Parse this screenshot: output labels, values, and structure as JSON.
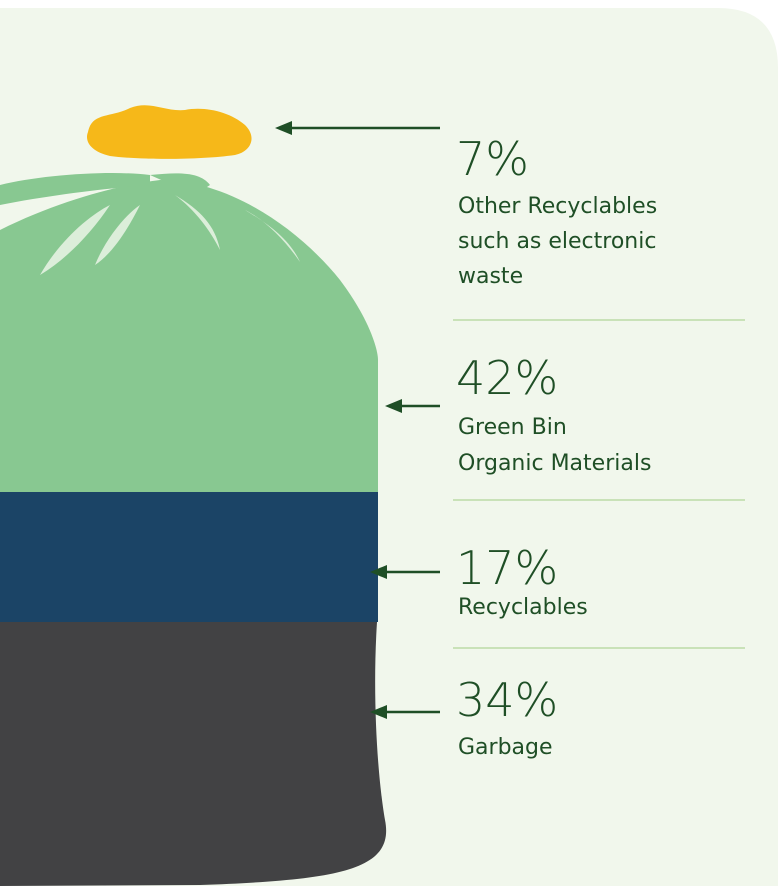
{
  "items": [
    {
      "value": "7%",
      "lines": [
        "Other Recyclables",
        "such as electronic",
        "waste"
      ]
    },
    {
      "value": "42%",
      "lines": [
        "Green Bin",
        "Organic Materials"
      ]
    },
    {
      "value": "17%",
      "lines": [
        "Recyclables"
      ]
    },
    {
      "value": "34%",
      "lines": [
        "Garbage"
      ]
    }
  ]
}
